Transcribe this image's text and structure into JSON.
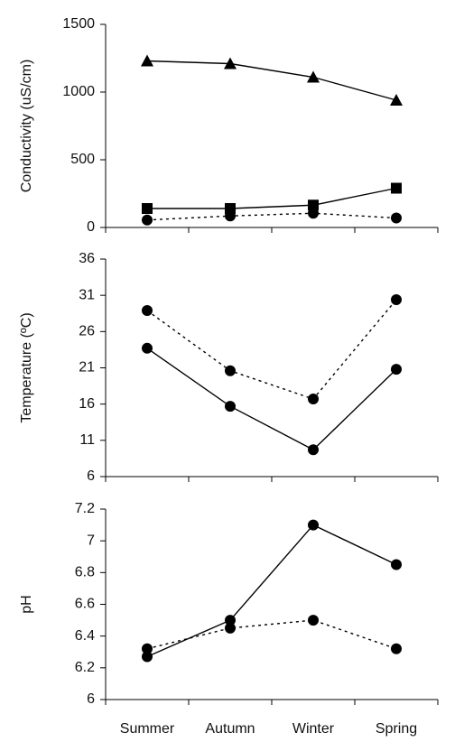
{
  "chart_data": [
    {
      "type": "line",
      "y_label": "Conductivity (uS/cm)",
      "categories": [
        null,
        null,
        null,
        null
      ],
      "ylim": [
        0,
        1500
      ],
      "yticks": [
        0,
        500,
        1000,
        1500
      ],
      "series": [
        {
          "color": "#000000",
          "marker": "triangle",
          "dashed": false,
          "values": [
            1230,
            1210,
            1110,
            940
          ]
        },
        {
          "color": "#000000",
          "marker": "square",
          "dashed": false,
          "values": [
            140,
            140,
            165,
            290
          ]
        },
        {
          "color": "#000000",
          "marker": "circle",
          "dashed": true,
          "values": [
            55,
            85,
            105,
            70
          ]
        }
      ]
    },
    {
      "type": "line",
      "y_label": "Temperature (ºC)",
      "categories": [
        null,
        null,
        null,
        null
      ],
      "ylim": [
        6,
        36
      ],
      "yticks": [
        6,
        11,
        16,
        21,
        26,
        31,
        36
      ],
      "series": [
        {
          "color": "#000000",
          "marker": "circle",
          "dashed": true,
          "values": [
            28.9,
            20.6,
            16.7,
            30.4
          ]
        },
        {
          "color": "#000000",
          "marker": "circle",
          "dashed": false,
          "values": [
            23.7,
            15.7,
            9.7,
            20.8
          ]
        }
      ]
    },
    {
      "type": "line",
      "y_label": "pH",
      "categories": [
        "Summer",
        "Autumn",
        "Winter",
        "Spring"
      ],
      "ylim": [
        6,
        7.2
      ],
      "yticks": [
        6,
        6.2,
        6.4,
        6.6,
        6.8,
        7,
        7.2
      ],
      "series": [
        {
          "color": "#000000",
          "marker": "circle",
          "dashed": false,
          "values": [
            6.27,
            6.5,
            7.1,
            6.85
          ]
        },
        {
          "color": "#000000",
          "marker": "circle",
          "dashed": true,
          "values": [
            6.32,
            6.45,
            6.5,
            6.32
          ]
        }
      ]
    }
  ]
}
